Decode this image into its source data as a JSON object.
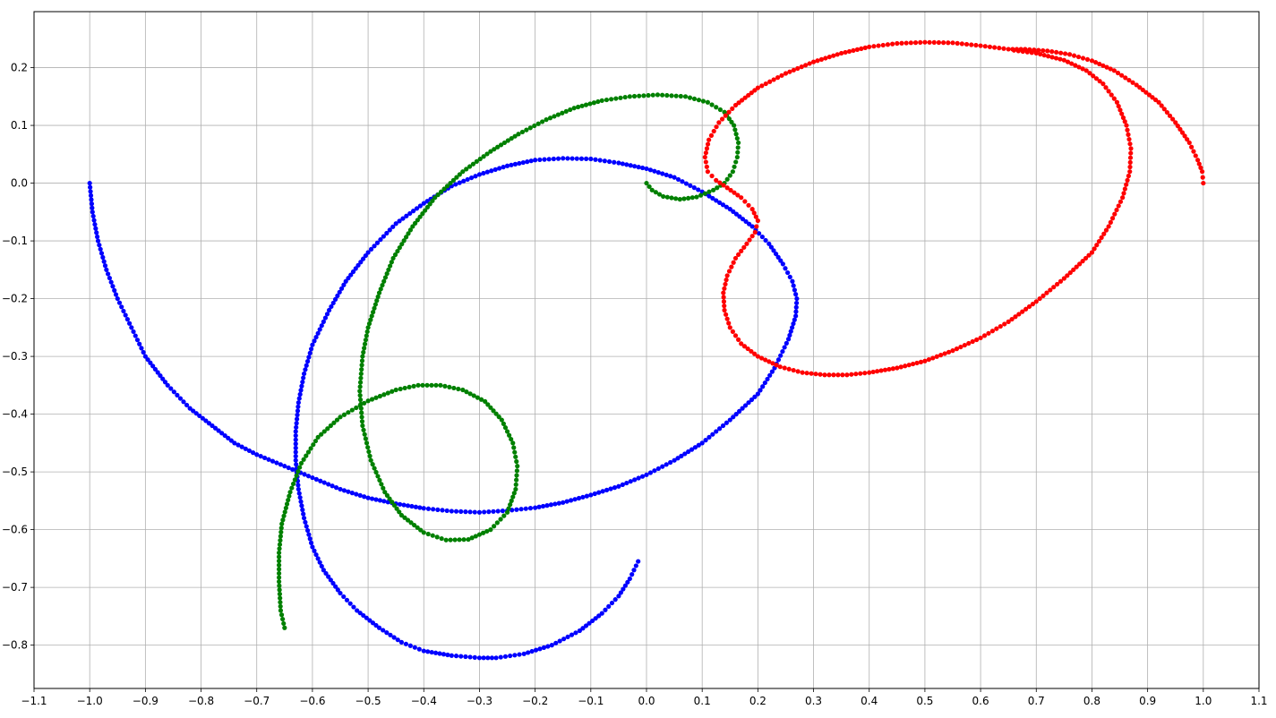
{
  "chart_data": {
    "type": "scatter",
    "title": "",
    "xlabel": "",
    "ylabel": "",
    "xlim": [
      -1.1,
      1.1
    ],
    "ylim": [
      -0.875,
      0.297
    ],
    "grid": true,
    "legend": "none",
    "xticks": [
      "−1.1",
      "−1.0",
      "−0.9",
      "−0.8",
      "−0.7",
      "−0.6",
      "−0.5",
      "−0.4",
      "−0.3",
      "−0.2",
      "−0.1",
      "0.0",
      "0.1",
      "0.2",
      "0.3",
      "0.4",
      "0.5",
      "0.6",
      "0.7",
      "0.8",
      "0.9",
      "1.0",
      "1.1"
    ],
    "xtick_values": [
      -1.1,
      -1.0,
      -0.9,
      -0.8,
      -0.7,
      -0.6,
      -0.5,
      -0.4,
      -0.3,
      -0.2,
      -0.1,
      0.0,
      0.1,
      0.2,
      0.3,
      0.4,
      0.5,
      0.6,
      0.7,
      0.8,
      0.9,
      1.0,
      1.1
    ],
    "yticks": [
      "0.2",
      "0.1",
      "0.0",
      "−0.1",
      "−0.2",
      "−0.3",
      "−0.4",
      "−0.5",
      "−0.6",
      "−0.7",
      "−0.8"
    ],
    "ytick_values": [
      0.2,
      0.1,
      0.0,
      -0.1,
      -0.2,
      -0.3,
      -0.4,
      -0.5,
      -0.6,
      -0.7,
      -0.8
    ],
    "series": [
      {
        "color": "#0000ff",
        "points": [
          [
            -1.0,
            0.0
          ],
          [
            -0.995,
            -0.05
          ],
          [
            -0.985,
            -0.1
          ],
          [
            -0.97,
            -0.15
          ],
          [
            -0.95,
            -0.2
          ],
          [
            -0.925,
            -0.25
          ],
          [
            -0.9,
            -0.3
          ],
          [
            -0.86,
            -0.35
          ],
          [
            -0.82,
            -0.39
          ],
          [
            -0.78,
            -0.42
          ],
          [
            -0.74,
            -0.45
          ],
          [
            -0.7,
            -0.47
          ],
          [
            -0.65,
            -0.49
          ],
          [
            -0.6,
            -0.51
          ],
          [
            -0.55,
            -0.53
          ],
          [
            -0.5,
            -0.545
          ],
          [
            -0.45,
            -0.555
          ],
          [
            -0.4,
            -0.563
          ],
          [
            -0.35,
            -0.568
          ],
          [
            -0.3,
            -0.57
          ],
          [
            -0.25,
            -0.567
          ],
          [
            -0.2,
            -0.562
          ],
          [
            -0.15,
            -0.553
          ],
          [
            -0.1,
            -0.54
          ],
          [
            -0.05,
            -0.525
          ],
          [
            0.0,
            -0.505
          ],
          [
            0.05,
            -0.48
          ],
          [
            0.1,
            -0.45
          ],
          [
            0.15,
            -0.41
          ],
          [
            0.2,
            -0.365
          ],
          [
            0.23,
            -0.32
          ],
          [
            0.255,
            -0.27
          ],
          [
            0.268,
            -0.23
          ],
          [
            0.27,
            -0.2
          ],
          [
            0.262,
            -0.17
          ],
          [
            0.245,
            -0.14
          ],
          [
            0.22,
            -0.105
          ],
          [
            0.19,
            -0.075
          ],
          [
            0.15,
            -0.045
          ],
          [
            0.1,
            -0.015
          ],
          [
            0.05,
            0.01
          ],
          [
            0.0,
            0.025
          ],
          [
            -0.05,
            0.035
          ],
          [
            -0.1,
            0.042
          ],
          [
            -0.15,
            0.043
          ],
          [
            -0.2,
            0.04
          ],
          [
            -0.25,
            0.03
          ],
          [
            -0.3,
            0.015
          ],
          [
            -0.35,
            -0.005
          ],
          [
            -0.4,
            -0.035
          ],
          [
            -0.45,
            -0.07
          ],
          [
            -0.5,
            -0.12
          ],
          [
            -0.54,
            -0.17
          ],
          [
            -0.57,
            -0.22
          ],
          [
            -0.6,
            -0.28
          ],
          [
            -0.615,
            -0.33
          ],
          [
            -0.625,
            -0.38
          ],
          [
            -0.63,
            -0.43
          ],
          [
            -0.63,
            -0.48
          ],
          [
            -0.625,
            -0.53
          ],
          [
            -0.615,
            -0.58
          ],
          [
            -0.6,
            -0.63
          ],
          [
            -0.58,
            -0.67
          ],
          [
            -0.55,
            -0.71
          ],
          [
            -0.52,
            -0.74
          ],
          [
            -0.48,
            -0.77
          ],
          [
            -0.44,
            -0.795
          ],
          [
            -0.4,
            -0.81
          ],
          [
            -0.35,
            -0.818
          ],
          [
            -0.3,
            -0.822
          ],
          [
            -0.27,
            -0.822
          ],
          [
            -0.22,
            -0.815
          ],
          [
            -0.17,
            -0.8
          ],
          [
            -0.12,
            -0.775
          ],
          [
            -0.08,
            -0.745
          ],
          [
            -0.05,
            -0.715
          ],
          [
            -0.03,
            -0.685
          ],
          [
            -0.015,
            -0.655
          ]
        ]
      },
      {
        "color": "#008000",
        "points": [
          [
            0.0,
            0.0
          ],
          [
            0.01,
            -0.012
          ],
          [
            0.03,
            -0.023
          ],
          [
            0.06,
            -0.028
          ],
          [
            0.09,
            -0.024
          ],
          [
            0.12,
            -0.012
          ],
          [
            0.14,
            0.0
          ],
          [
            0.155,
            0.02
          ],
          [
            0.163,
            0.045
          ],
          [
            0.165,
            0.07
          ],
          [
            0.157,
            0.1
          ],
          [
            0.14,
            0.123
          ],
          [
            0.11,
            0.14
          ],
          [
            0.07,
            0.15
          ],
          [
            0.02,
            0.153
          ],
          [
            -0.03,
            0.15
          ],
          [
            -0.08,
            0.143
          ],
          [
            -0.13,
            0.13
          ],
          [
            -0.18,
            0.11
          ],
          [
            -0.23,
            0.085
          ],
          [
            -0.28,
            0.055
          ],
          [
            -0.33,
            0.02
          ],
          [
            -0.38,
            -0.025
          ],
          [
            -0.42,
            -0.075
          ],
          [
            -0.455,
            -0.13
          ],
          [
            -0.48,
            -0.19
          ],
          [
            -0.5,
            -0.25
          ],
          [
            -0.51,
            -0.3
          ],
          [
            -0.515,
            -0.36
          ],
          [
            -0.51,
            -0.42
          ],
          [
            -0.495,
            -0.48
          ],
          [
            -0.47,
            -0.535
          ],
          [
            -0.44,
            -0.575
          ],
          [
            -0.4,
            -0.605
          ],
          [
            -0.36,
            -0.618
          ],
          [
            -0.32,
            -0.617
          ],
          [
            -0.28,
            -0.6
          ],
          [
            -0.25,
            -0.57
          ],
          [
            -0.235,
            -0.53
          ],
          [
            -0.232,
            -0.49
          ],
          [
            -0.24,
            -0.45
          ],
          [
            -0.26,
            -0.41
          ],
          [
            -0.29,
            -0.378
          ],
          [
            -0.33,
            -0.358
          ],
          [
            -0.37,
            -0.35
          ],
          [
            -0.41,
            -0.35
          ],
          [
            -0.45,
            -0.358
          ],
          [
            -0.5,
            -0.377
          ],
          [
            -0.55,
            -0.405
          ],
          [
            -0.59,
            -0.44
          ],
          [
            -0.62,
            -0.485
          ],
          [
            -0.64,
            -0.535
          ],
          [
            -0.655,
            -0.59
          ],
          [
            -0.66,
            -0.64
          ],
          [
            -0.66,
            -0.69
          ],
          [
            -0.657,
            -0.74
          ],
          [
            -0.65,
            -0.77
          ]
        ]
      },
      {
        "color": "#ff0000",
        "points": [
          [
            1.0,
            0.0
          ],
          [
            0.998,
            0.02
          ],
          [
            0.99,
            0.04
          ],
          [
            0.975,
            0.07
          ],
          [
            0.95,
            0.105
          ],
          [
            0.92,
            0.14
          ],
          [
            0.88,
            0.17
          ],
          [
            0.84,
            0.195
          ],
          [
            0.8,
            0.212
          ],
          [
            0.76,
            0.223
          ],
          [
            0.72,
            0.229
          ],
          [
            0.68,
            0.232
          ],
          [
            0.65,
            0.232
          ],
          [
            0.6,
            0.238
          ],
          [
            0.55,
            0.243
          ],
          [
            0.5,
            0.244
          ],
          [
            0.45,
            0.242
          ],
          [
            0.4,
            0.236
          ],
          [
            0.35,
            0.225
          ],
          [
            0.3,
            0.21
          ],
          [
            0.25,
            0.19
          ],
          [
            0.2,
            0.165
          ],
          [
            0.16,
            0.135
          ],
          [
            0.13,
            0.105
          ],
          [
            0.112,
            0.075
          ],
          [
            0.105,
            0.045
          ],
          [
            0.11,
            0.02
          ],
          [
            0.125,
            0.005
          ],
          [
            0.145,
            -0.008
          ],
          [
            0.17,
            -0.025
          ],
          [
            0.19,
            -0.045
          ],
          [
            0.2,
            -0.065
          ],
          [
            0.195,
            -0.085
          ],
          [
            0.18,
            -0.105
          ],
          [
            0.16,
            -0.13
          ],
          [
            0.145,
            -0.16
          ],
          [
            0.138,
            -0.19
          ],
          [
            0.14,
            -0.22
          ],
          [
            0.15,
            -0.25
          ],
          [
            0.17,
            -0.278
          ],
          [
            0.2,
            -0.3
          ],
          [
            0.24,
            -0.318
          ],
          [
            0.28,
            -0.328
          ],
          [
            0.32,
            -0.332
          ],
          [
            0.36,
            -0.332
          ],
          [
            0.4,
            -0.328
          ],
          [
            0.45,
            -0.32
          ],
          [
            0.5,
            -0.308
          ],
          [
            0.55,
            -0.29
          ],
          [
            0.6,
            -0.268
          ],
          [
            0.65,
            -0.24
          ],
          [
            0.7,
            -0.205
          ],
          [
            0.75,
            -0.165
          ],
          [
            0.8,
            -0.12
          ],
          [
            0.83,
            -0.075
          ],
          [
            0.855,
            -0.025
          ],
          [
            0.868,
            0.02
          ],
          [
            0.87,
            0.06
          ],
          [
            0.862,
            0.1
          ],
          [
            0.845,
            0.14
          ],
          [
            0.82,
            0.172
          ],
          [
            0.79,
            0.195
          ],
          [
            0.75,
            0.213
          ],
          [
            0.7,
            0.225
          ],
          [
            0.66,
            0.23
          ]
        ]
      }
    ]
  }
}
